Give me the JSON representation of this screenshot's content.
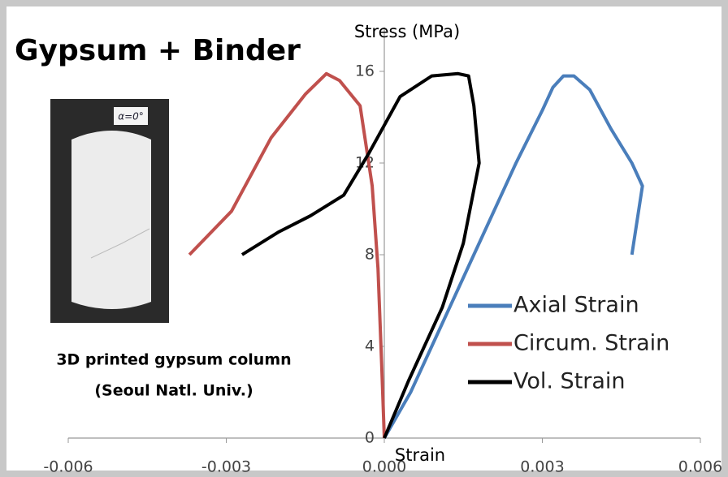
{
  "chart_data": {
    "type": "line",
    "title": "Gypsum + Binder",
    "y_label": "Stress (MPa)",
    "x_label": "Strain",
    "photo_label": "α=0°",
    "caption": [
      "3D printed gypsum column",
      "(Seoul Natl. Univ.)"
    ],
    "xlim": [
      -0.006,
      0.006
    ],
    "xticks": [
      -0.006,
      -0.003,
      {
        "value": 0,
        "label": "0.000"
      },
      0.003,
      0.006
    ],
    "ylim": [
      0,
      17.5
    ],
    "yticks": [
      0,
      4,
      8,
      12,
      16
    ],
    "grid": false,
    "legend": "right",
    "series": [
      {
        "name": "Axial Strain",
        "color": "#4a7ebb",
        "x": [
          0,
          0.0005,
          0.001,
          0.0015,
          0.002,
          0.0025,
          0.003,
          0.0032,
          0.0034,
          0.0036,
          0.0039,
          0.0043,
          0.0047,
          0.0049,
          0.0048,
          0.0047
        ],
        "values": [
          0,
          2,
          4.5,
          7,
          9.5,
          12,
          14.3,
          15.3,
          15.8,
          15.8,
          15.2,
          13.5,
          12,
          11,
          9.5,
          8
        ]
      },
      {
        "name": "Circum. Strain",
        "color": "#c0504d",
        "x": [
          0,
          -5e-05,
          -0.00012,
          -0.00023,
          -0.00046,
          -0.00085,
          -0.0011,
          -0.0015,
          -0.00215,
          -0.0029,
          -0.0037
        ],
        "values": [
          0,
          3.2,
          7.4,
          11,
          14.5,
          15.6,
          15.9,
          15,
          13.1,
          9.9,
          8
        ]
      },
      {
        "name": "Vol. Strain",
        "color": "#000000",
        "x": [
          0,
          0.00046,
          0.0011,
          0.0015,
          0.0018,
          0.0017,
          0.0016,
          0.0014,
          0.0009,
          0.0003,
          -0.0003,
          -0.00077,
          -0.0014,
          -0.002,
          -0.0027
        ],
        "values": [
          0,
          2.5,
          5.7,
          8.5,
          12,
          14.5,
          15.8,
          15.9,
          15.8,
          14.9,
          12.4,
          10.6,
          9.7,
          9,
          8
        ]
      }
    ]
  }
}
